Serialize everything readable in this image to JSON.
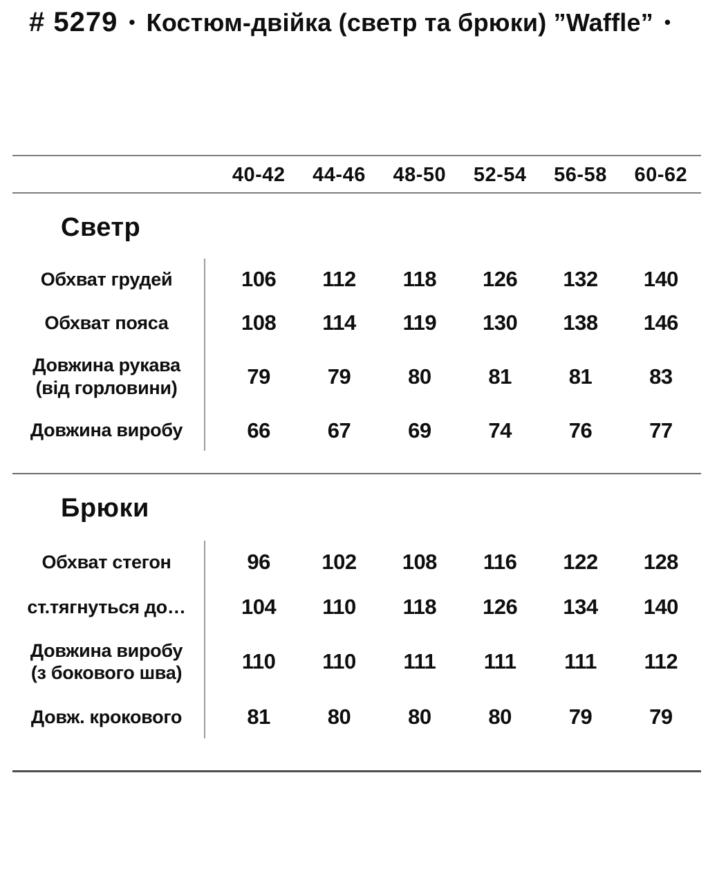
{
  "title": {
    "number": "# 5279",
    "bullet": "•",
    "name": "Костюм-двійка (светр та брюки) ”Waffle”"
  },
  "table": {
    "size_headers": [
      "40-42",
      "44-46",
      "48-50",
      "52-54",
      "56-58",
      "60-62"
    ],
    "sections": [
      {
        "title": "Светр",
        "rows": [
          {
            "label_lines": [
              "Обхват грудей"
            ],
            "values": [
              106,
              112,
              118,
              126,
              132,
              140
            ]
          },
          {
            "label_lines": [
              "Обхват пояса"
            ],
            "values": [
              108,
              114,
              119,
              130,
              138,
              146
            ]
          },
          {
            "label_lines": [
              "Довжина рукава",
              "(від горловини)"
            ],
            "values": [
              79,
              79,
              80,
              81,
              81,
              83
            ]
          },
          {
            "label_lines": [
              "Довжина виробу"
            ],
            "values": [
              66,
              67,
              69,
              74,
              76,
              77
            ]
          }
        ]
      },
      {
        "title": "Брюки",
        "rows": [
          {
            "label_lines": [
              "Обхват стегон"
            ],
            "values": [
              96,
              102,
              108,
              116,
              122,
              128
            ]
          },
          {
            "label_lines": [
              "ст.тягнуться до…"
            ],
            "values": [
              104,
              110,
              118,
              126,
              134,
              140
            ]
          },
          {
            "label_lines": [
              "Довжина виробу",
              "(з бокового шва)"
            ],
            "values": [
              110,
              110,
              111,
              111,
              111,
              112
            ]
          },
          {
            "label_lines": [
              "Довж. крокового"
            ],
            "values": [
              81,
              80,
              80,
              80,
              79,
              79
            ]
          }
        ]
      }
    ]
  },
  "colors": {
    "background": "#ffffff",
    "text": "#0e0e0e",
    "rule_line": "#7d7d7d",
    "column_divider": "#9b9b9b"
  }
}
